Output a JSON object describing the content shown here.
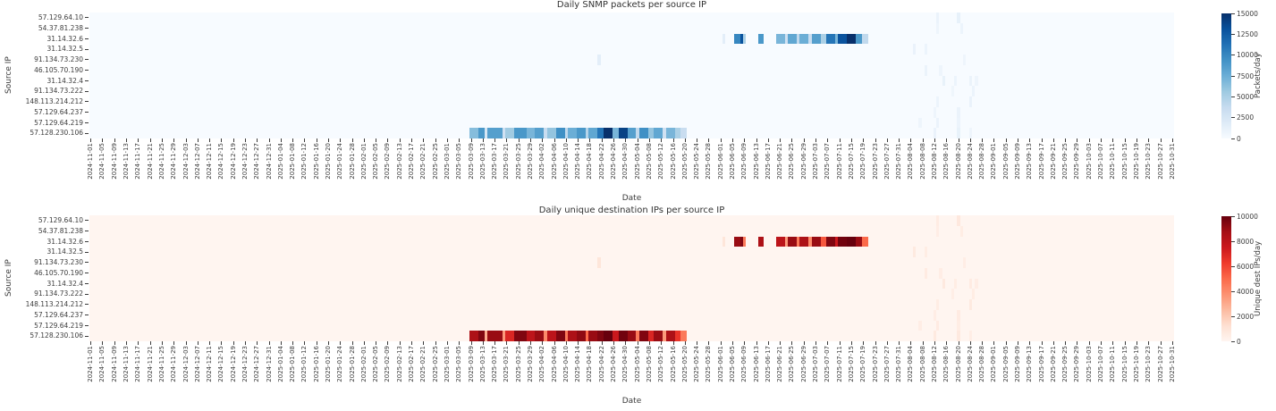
{
  "chart_data": {
    "layout": "two-stacked-heatmaps",
    "x_axis": {
      "label": "Date",
      "start": "2024-11-01",
      "end": "2025-10-31",
      "tick_step_days": 4,
      "tick_labels": [
        "2024-11-01",
        "2024-11-05",
        "2024-11-09",
        "2024-11-13",
        "2024-11-17",
        "2024-11-21",
        "2024-11-25",
        "2024-11-29",
        "2024-12-03",
        "2024-12-07",
        "2024-12-11",
        "2024-12-15",
        "2024-12-19",
        "2024-12-23",
        "2024-12-27",
        "2024-12-31",
        "2025-01-04",
        "2025-01-08",
        "2025-01-12",
        "2025-01-16",
        "2025-01-20",
        "2025-01-24",
        "2025-01-28",
        "2025-02-01",
        "2025-02-05",
        "2025-02-09",
        "2025-02-13",
        "2025-02-17",
        "2025-02-21",
        "2025-02-25",
        "2025-03-01",
        "2025-03-05",
        "2025-03-09",
        "2025-03-13",
        "2025-03-17",
        "2025-03-21",
        "2025-03-25",
        "2025-03-29",
        "2025-04-02",
        "2025-04-06",
        "2025-04-10",
        "2025-04-14",
        "2025-04-18",
        "2025-04-22",
        "2025-04-26",
        "2025-04-30",
        "2025-05-04",
        "2025-05-08",
        "2025-05-12",
        "2025-05-16",
        "2025-05-20",
        "2025-05-24",
        "2025-05-28",
        "2025-06-01",
        "2025-06-05",
        "2025-06-09",
        "2025-06-13",
        "2025-06-17",
        "2025-06-21",
        "2025-06-25",
        "2025-06-29",
        "2025-07-03",
        "2025-07-07",
        "2025-07-11",
        "2025-07-15",
        "2025-07-19",
        "2025-07-23",
        "2025-07-27",
        "2025-07-31",
        "2025-08-04",
        "2025-08-08",
        "2025-08-12",
        "2025-08-16",
        "2025-08-20",
        "2025-08-24",
        "2025-08-28",
        "2025-09-01",
        "2025-09-05",
        "2025-09-09",
        "2025-09-13",
        "2025-09-17",
        "2025-09-21",
        "2025-09-25",
        "2025-09-29",
        "2025-10-03",
        "2025-10-07",
        "2025-10-11",
        "2025-10-15",
        "2025-10-19",
        "2025-10-23",
        "2025-10-27",
        "2025-10-31"
      ]
    },
    "y_axis": {
      "label": "Source IP",
      "categories": [
        "57.129.64.10",
        "54.37.81.238",
        "31.14.32.6",
        "31.14.32.5",
        "91.134.73.230",
        "46.105.70.190",
        "31.14.32.4",
        "91.134.73.222",
        "148.113.214.212",
        "57.129.64.237",
        "57.129.64.219",
        "57.128.230.106"
      ]
    },
    "charts": [
      {
        "type": "heatmap",
        "title": "Daily SNMP packets per source IP",
        "colorbar": {
          "label": "Packets/day",
          "ticks": [
            0,
            2500,
            5000,
            7500,
            10000,
            12500,
            15000
          ],
          "vmax": 15000,
          "stops": [
            "#f7fbff",
            "#deebf7",
            "#c6dbef",
            "#9ecae1",
            "#6baed6",
            "#4292c6",
            "#2171b5",
            "#08519c",
            "#08306b"
          ]
        },
        "segments": [
          [
            11,
            "2025-03-09",
            "2025-03-11",
            6500
          ],
          [
            11,
            "2025-03-12",
            "2025-03-13",
            9000
          ],
          [
            11,
            "2025-03-14",
            "2025-03-14",
            2500
          ],
          [
            11,
            "2025-03-15",
            "2025-03-19",
            8500
          ],
          [
            11,
            "2025-03-20",
            "2025-03-20",
            3000
          ],
          [
            11,
            "2025-03-21",
            "2025-03-23",
            5500
          ],
          [
            11,
            "2025-03-24",
            "2025-03-27",
            9000
          ],
          [
            11,
            "2025-03-28",
            "2025-03-30",
            7000
          ],
          [
            11,
            "2025-03-31",
            "2025-04-02",
            8500
          ],
          [
            11,
            "2025-04-03",
            "2025-04-03",
            3500
          ],
          [
            11,
            "2025-04-04",
            "2025-04-06",
            6000
          ],
          [
            11,
            "2025-04-07",
            "2025-04-09",
            9500
          ],
          [
            11,
            "2025-04-10",
            "2025-04-10",
            4000
          ],
          [
            11,
            "2025-04-11",
            "2025-04-13",
            7500
          ],
          [
            11,
            "2025-04-14",
            "2025-04-16",
            9000
          ],
          [
            11,
            "2025-04-17",
            "2025-04-17",
            4500
          ],
          [
            11,
            "2025-04-18",
            "2025-04-20",
            8000
          ],
          [
            11,
            "2025-04-21",
            "2025-04-22",
            11000
          ],
          [
            11,
            "2025-04-23",
            "2025-04-25",
            15000
          ],
          [
            11,
            "2025-04-26",
            "2025-04-27",
            7000
          ],
          [
            11,
            "2025-04-28",
            "2025-04-30",
            14000
          ],
          [
            11,
            "2025-05-01",
            "2025-05-03",
            8500
          ],
          [
            11,
            "2025-05-04",
            "2025-05-04",
            4000
          ],
          [
            11,
            "2025-05-05",
            "2025-05-07",
            9500
          ],
          [
            11,
            "2025-05-08",
            "2025-05-09",
            6000
          ],
          [
            11,
            "2025-05-10",
            "2025-05-12",
            8000
          ],
          [
            11,
            "2025-05-13",
            "2025-05-13",
            3000
          ],
          [
            11,
            "2025-05-14",
            "2025-05-16",
            7000
          ],
          [
            11,
            "2025-05-17",
            "2025-05-18",
            5000
          ],
          [
            11,
            "2025-05-19",
            "2025-05-20",
            3500
          ],
          [
            2,
            "2025-06-02",
            "2025-06-02",
            1500
          ],
          [
            2,
            "2025-06-06",
            "2025-06-07",
            10000
          ],
          [
            2,
            "2025-06-08",
            "2025-06-08",
            13000
          ],
          [
            2,
            "2025-06-09",
            "2025-06-09",
            5000
          ],
          [
            2,
            "2025-06-14",
            "2025-06-15",
            9000
          ],
          [
            2,
            "2025-06-20",
            "2025-06-22",
            7000
          ],
          [
            2,
            "2025-06-23",
            "2025-06-23",
            3000
          ],
          [
            2,
            "2025-06-24",
            "2025-06-26",
            8000
          ],
          [
            2,
            "2025-06-27",
            "2025-06-27",
            4000
          ],
          [
            2,
            "2025-06-28",
            "2025-06-30",
            7500
          ],
          [
            2,
            "2025-07-01",
            "2025-07-01",
            3500
          ],
          [
            2,
            "2025-07-02",
            "2025-07-04",
            8500
          ],
          [
            2,
            "2025-07-05",
            "2025-07-06",
            5000
          ],
          [
            2,
            "2025-07-07",
            "2025-07-09",
            11000
          ],
          [
            2,
            "2025-07-10",
            "2025-07-10",
            7000
          ],
          [
            2,
            "2025-07-11",
            "2025-07-13",
            13000
          ],
          [
            2,
            "2025-07-14",
            "2025-07-16",
            15000
          ],
          [
            2,
            "2025-07-17",
            "2025-07-18",
            9000
          ],
          [
            2,
            "2025-07-19",
            "2025-07-20",
            4000
          ]
        ],
        "cells": [
          [
            0,
            "2025-08-13",
            900
          ],
          [
            0,
            "2025-08-20",
            1200
          ],
          [
            1,
            "2025-08-13",
            700
          ],
          [
            1,
            "2025-08-21",
            800
          ],
          [
            3,
            "2025-08-05",
            1000
          ],
          [
            3,
            "2025-08-09",
            800
          ],
          [
            4,
            "2025-04-21",
            1500
          ],
          [
            4,
            "2025-08-22",
            700
          ],
          [
            5,
            "2025-08-09",
            900
          ],
          [
            5,
            "2025-08-14",
            700
          ],
          [
            6,
            "2025-08-15",
            1100
          ],
          [
            6,
            "2025-08-19",
            800
          ],
          [
            6,
            "2025-08-24",
            900
          ],
          [
            6,
            "2025-08-26",
            700
          ],
          [
            7,
            "2025-08-18",
            600
          ],
          [
            7,
            "2025-08-25",
            800
          ],
          [
            8,
            "2025-08-13",
            800
          ],
          [
            8,
            "2025-08-24",
            1000
          ],
          [
            9,
            "2025-08-12",
            700
          ],
          [
            9,
            "2025-08-20",
            900
          ],
          [
            10,
            "2025-08-07",
            700
          ],
          [
            10,
            "2025-08-13",
            900
          ],
          [
            10,
            "2025-08-20",
            800
          ],
          [
            11,
            "2025-08-12",
            1000
          ],
          [
            11,
            "2025-08-20",
            1100
          ],
          [
            11,
            "2025-08-24",
            700
          ]
        ]
      },
      {
        "type": "heatmap",
        "title": "Daily unique destination IPs per source IP",
        "colorbar": {
          "label": "Unique dest IPs/day",
          "ticks": [
            0,
            2000,
            4000,
            6000,
            8000,
            10000
          ],
          "vmax": 10000,
          "stops": [
            "#fff5f0",
            "#fee0d2",
            "#fcbba1",
            "#fc9272",
            "#fb6a4a",
            "#ef3b2c",
            "#cb181d",
            "#a50f15",
            "#67000d"
          ]
        },
        "segments": [
          [
            11,
            "2025-03-09",
            "2025-03-11",
            8500
          ],
          [
            11,
            "2025-03-12",
            "2025-03-13",
            9500
          ],
          [
            11,
            "2025-03-14",
            "2025-03-14",
            3000
          ],
          [
            11,
            "2025-03-15",
            "2025-03-19",
            9000
          ],
          [
            11,
            "2025-03-20",
            "2025-03-20",
            3500
          ],
          [
            11,
            "2025-03-21",
            "2025-03-23",
            7000
          ],
          [
            11,
            "2025-03-24",
            "2025-03-27",
            9500
          ],
          [
            11,
            "2025-03-28",
            "2025-03-30",
            8000
          ],
          [
            11,
            "2025-03-31",
            "2025-04-02",
            9000
          ],
          [
            11,
            "2025-04-03",
            "2025-04-03",
            4000
          ],
          [
            11,
            "2025-04-04",
            "2025-04-06",
            8000
          ],
          [
            11,
            "2025-04-07",
            "2025-04-09",
            9500
          ],
          [
            11,
            "2025-04-10",
            "2025-04-10",
            4500
          ],
          [
            11,
            "2025-04-11",
            "2025-04-13",
            8500
          ],
          [
            11,
            "2025-04-14",
            "2025-04-16",
            9200
          ],
          [
            11,
            "2025-04-17",
            "2025-04-17",
            5000
          ],
          [
            11,
            "2025-04-18",
            "2025-04-20",
            9000
          ],
          [
            11,
            "2025-04-21",
            "2025-04-22",
            9500
          ],
          [
            11,
            "2025-04-23",
            "2025-04-25",
            10000
          ],
          [
            11,
            "2025-04-26",
            "2025-04-27",
            7500
          ],
          [
            11,
            "2025-04-28",
            "2025-04-30",
            9800
          ],
          [
            11,
            "2025-05-01",
            "2025-05-03",
            9000
          ],
          [
            11,
            "2025-05-04",
            "2025-05-04",
            4500
          ],
          [
            11,
            "2025-05-05",
            "2025-05-07",
            9500
          ],
          [
            11,
            "2025-05-08",
            "2025-05-09",
            7000
          ],
          [
            11,
            "2025-05-10",
            "2025-05-12",
            9000
          ],
          [
            11,
            "2025-05-13",
            "2025-05-13",
            3500
          ],
          [
            11,
            "2025-05-14",
            "2025-05-16",
            8500
          ],
          [
            11,
            "2025-05-17",
            "2025-05-18",
            6500
          ],
          [
            11,
            "2025-05-19",
            "2025-05-20",
            4500
          ],
          [
            2,
            "2025-06-02",
            "2025-06-02",
            900
          ],
          [
            2,
            "2025-06-06",
            "2025-06-07",
            9000
          ],
          [
            2,
            "2025-06-08",
            "2025-06-08",
            9500
          ],
          [
            2,
            "2025-06-09",
            "2025-06-09",
            4500
          ],
          [
            2,
            "2025-06-14",
            "2025-06-15",
            8500
          ],
          [
            2,
            "2025-06-20",
            "2025-06-22",
            8000
          ],
          [
            2,
            "2025-06-23",
            "2025-06-23",
            3500
          ],
          [
            2,
            "2025-06-24",
            "2025-06-26",
            9000
          ],
          [
            2,
            "2025-06-27",
            "2025-06-27",
            4500
          ],
          [
            2,
            "2025-06-28",
            "2025-06-30",
            8500
          ],
          [
            2,
            "2025-07-01",
            "2025-07-01",
            4000
          ],
          [
            2,
            "2025-07-02",
            "2025-07-04",
            9000
          ],
          [
            2,
            "2025-07-05",
            "2025-07-06",
            5500
          ],
          [
            2,
            "2025-07-07",
            "2025-07-09",
            9500
          ],
          [
            2,
            "2025-07-10",
            "2025-07-10",
            7500
          ],
          [
            2,
            "2025-07-11",
            "2025-07-13",
            9800
          ],
          [
            2,
            "2025-07-14",
            "2025-07-16",
            10000
          ],
          [
            2,
            "2025-07-17",
            "2025-07-18",
            9000
          ],
          [
            2,
            "2025-07-19",
            "2025-07-20",
            5000
          ]
        ],
        "cells": [
          [
            0,
            "2025-08-13",
            550
          ],
          [
            0,
            "2025-08-20",
            750
          ],
          [
            1,
            "2025-08-13",
            450
          ],
          [
            1,
            "2025-08-21",
            500
          ],
          [
            3,
            "2025-08-05",
            650
          ],
          [
            3,
            "2025-08-09",
            500
          ],
          [
            4,
            "2025-04-21",
            900
          ],
          [
            4,
            "2025-08-22",
            450
          ],
          [
            5,
            "2025-08-09",
            600
          ],
          [
            5,
            "2025-08-14",
            450
          ],
          [
            6,
            "2025-08-15",
            700
          ],
          [
            6,
            "2025-08-19",
            500
          ],
          [
            6,
            "2025-08-24",
            600
          ],
          [
            6,
            "2025-08-26",
            450
          ],
          [
            7,
            "2025-08-18",
            400
          ],
          [
            7,
            "2025-08-25",
            500
          ],
          [
            8,
            "2025-08-13",
            500
          ],
          [
            8,
            "2025-08-24",
            650
          ],
          [
            9,
            "2025-08-12",
            450
          ],
          [
            9,
            "2025-08-20",
            600
          ],
          [
            10,
            "2025-08-07",
            450
          ],
          [
            10,
            "2025-08-13",
            600
          ],
          [
            10,
            "2025-08-20",
            500
          ],
          [
            11,
            "2025-08-12",
            650
          ],
          [
            11,
            "2025-08-20",
            700
          ],
          [
            11,
            "2025-08-24",
            450
          ]
        ]
      }
    ]
  }
}
